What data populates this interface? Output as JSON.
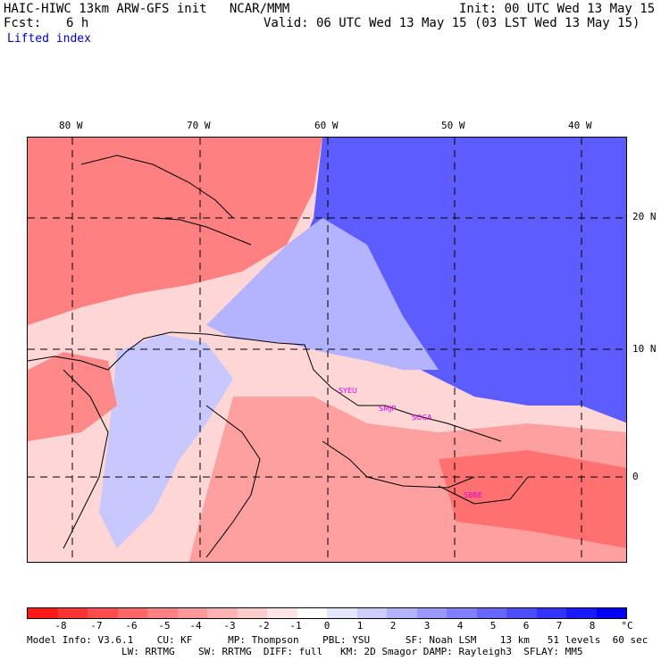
{
  "header": {
    "model_title": "HAIC-HIWC 13km ARW-GFS init   NCAR/MMM",
    "init": "Init: 00 UTC Wed 13 May 15",
    "fcst_label": "Fcst:",
    "fcst_value": "6 h",
    "valid": "Valid: 06 UTC Wed 13 May 15 (03 LST Wed 13 May 15)",
    "field_name": "Lifted index"
  },
  "map": {
    "lon_labels": [
      "80 W",
      "70 W",
      "60 W",
      "50 W",
      "40 W"
    ],
    "lat_labels": [
      "20 N",
      "10 N",
      "0"
    ],
    "sites": [
      {
        "label": "SYEU"
      },
      {
        "label": "SMJP"
      },
      {
        "label": "SOCA"
      },
      {
        "label": "SBBE"
      }
    ]
  },
  "colorbar": {
    "labels": [
      "-8",
      "-7",
      "-6",
      "-5",
      "-4",
      "-3",
      "-2",
      "-1",
      "0",
      "1",
      "2",
      "3",
      "4",
      "5",
      "6",
      "7",
      "8"
    ],
    "unit": "°C",
    "colors": [
      "#ff1a1a",
      "#ff3333",
      "#ff4d4d",
      "#ff6666",
      "#ff8080",
      "#ff9999",
      "#ffb3b3",
      "#ffcccc",
      "#ffe6e6",
      "#ffffff",
      "#e6e6ff",
      "#ccccff",
      "#b3b3ff",
      "#9999ff",
      "#8080ff",
      "#6666ff",
      "#4d4dff",
      "#3333ff",
      "#1a1aff",
      "#0000ff"
    ]
  },
  "footer": {
    "line1": "Model Info: V3.6.1    CU: KF      MP: Thompson    PBL: YSU      SF: Noah LSM    13 km   51 levels  60 sec",
    "line2": "                LW: RRTMG    SW: RRTMG  DIFF: full   KM: 2D Smagor DAMP: Rayleigh3  SFLAY: MM5"
  }
}
